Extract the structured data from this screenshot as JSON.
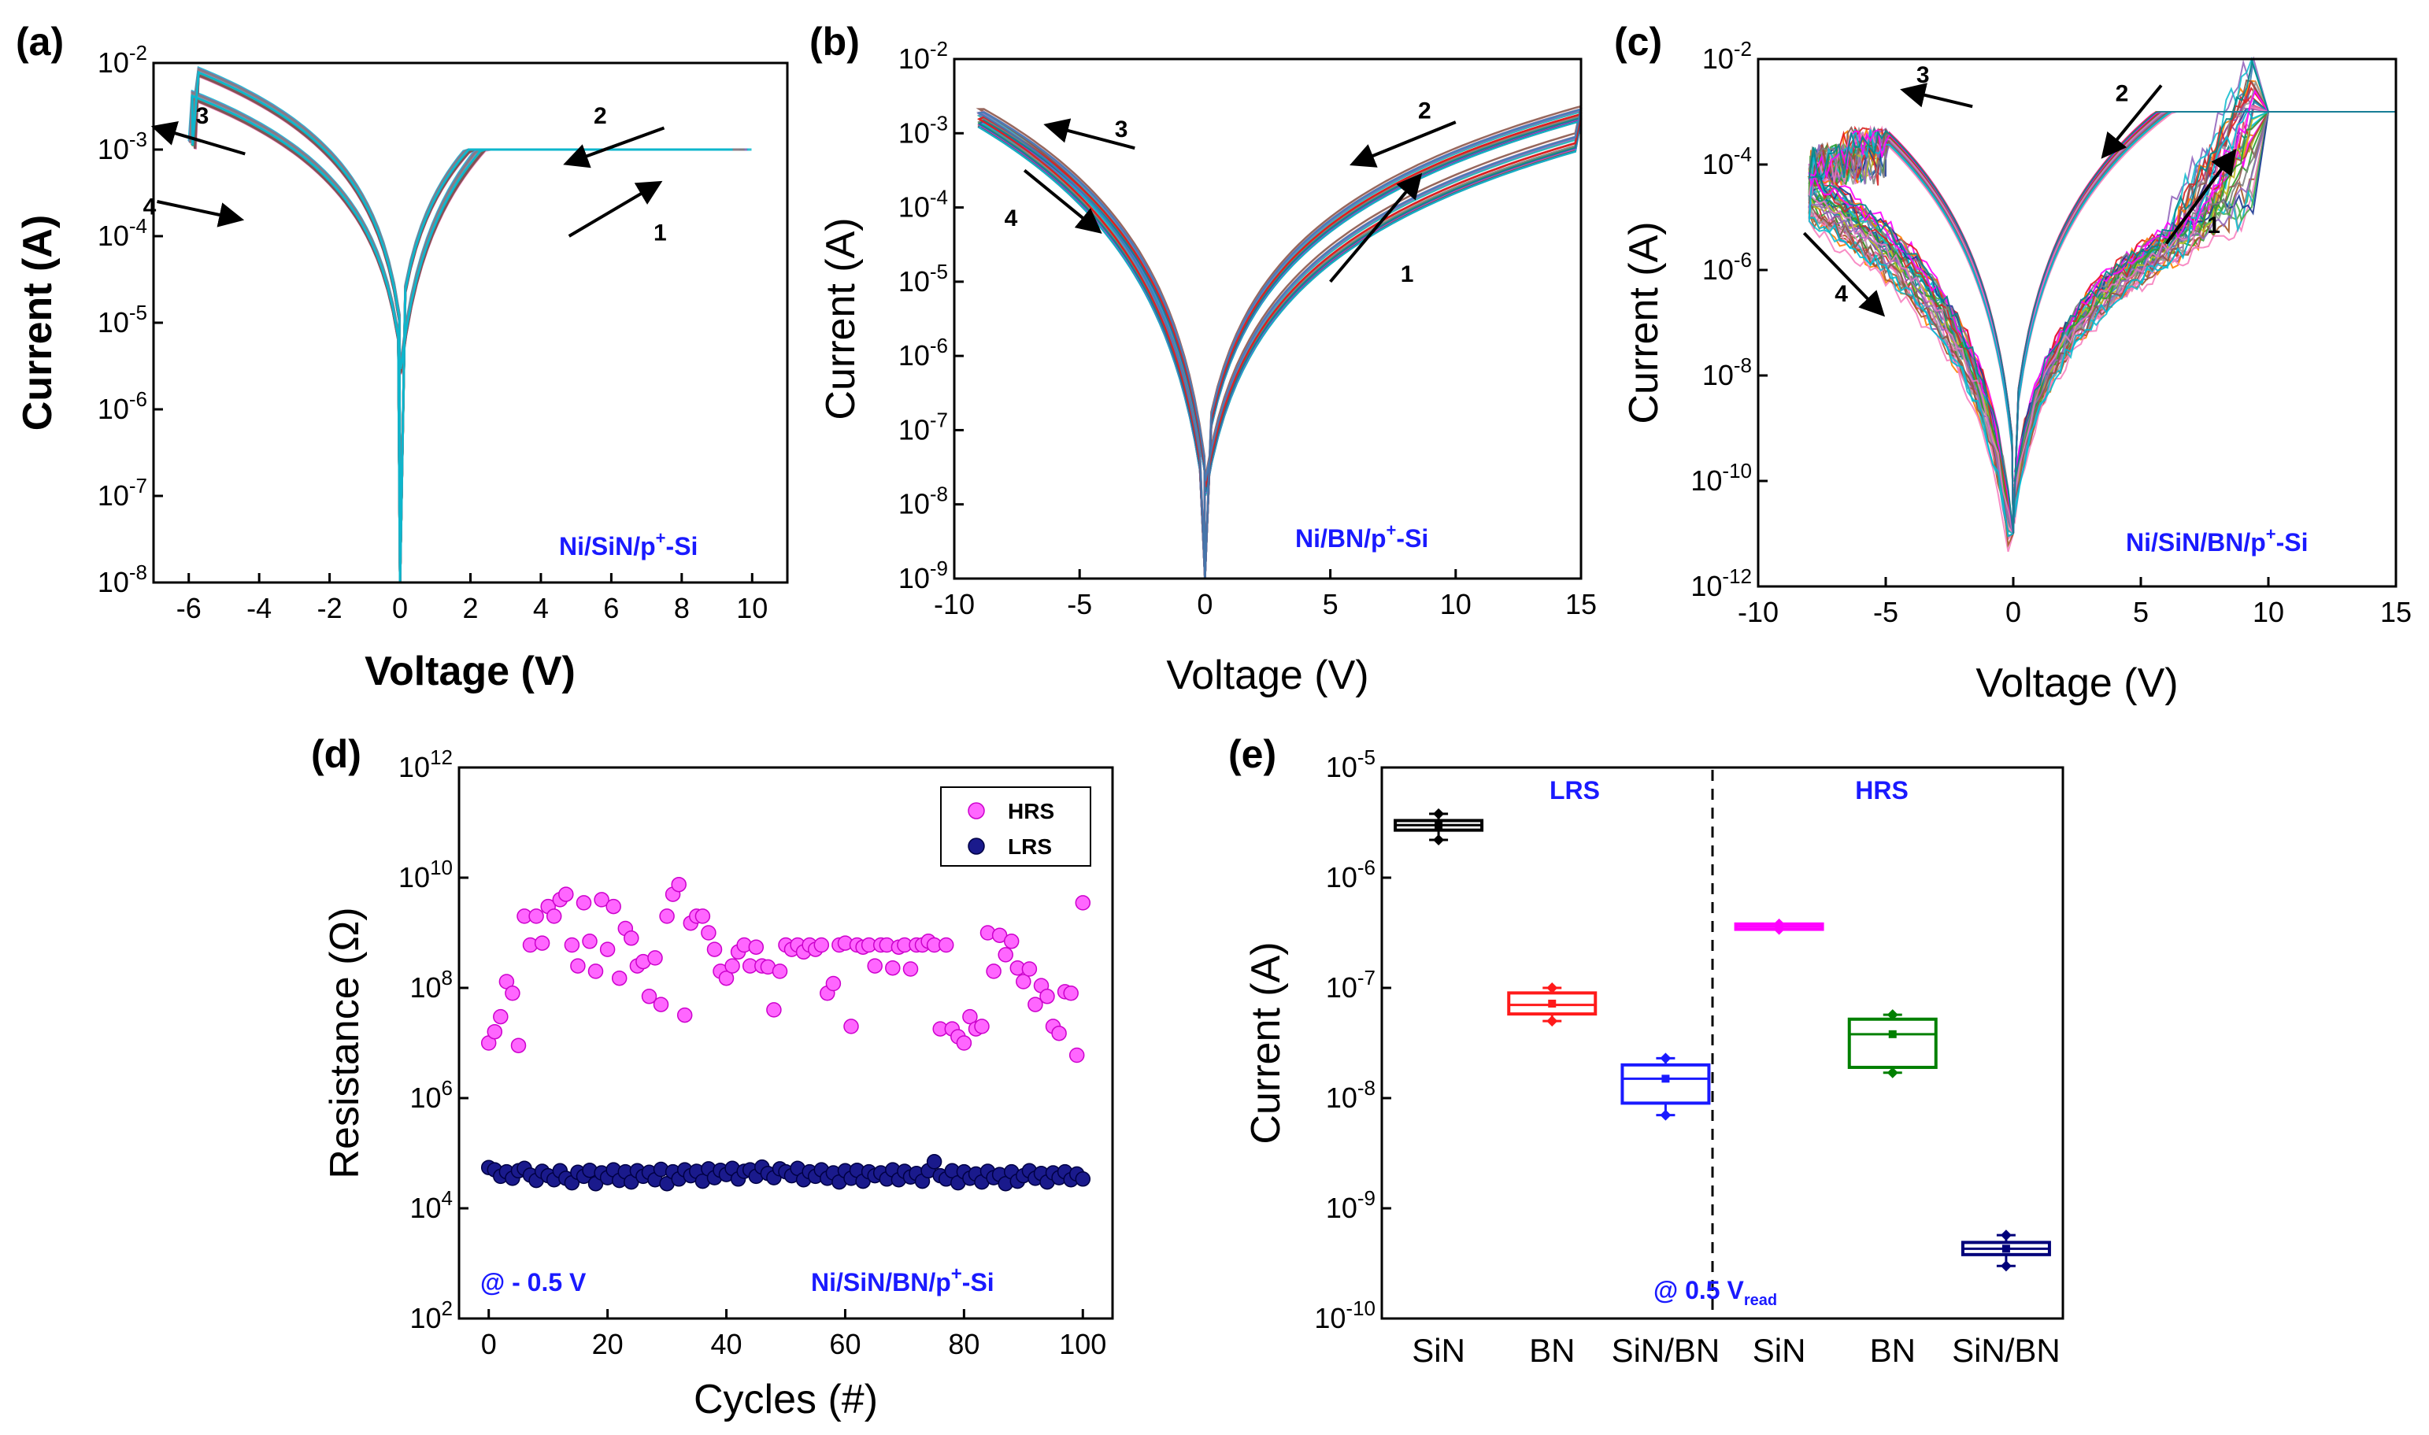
{
  "chart_data": [
    {
      "id": "a",
      "type": "line",
      "panel_label": "(a)",
      "xlabel": "Voltage (V)",
      "ylabel": "Current (A)",
      "xlim": [
        -7,
        11
      ],
      "ylim_log10": [
        -8,
        -2
      ],
      "xticks": [
        "-6",
        "-4",
        "-2",
        "0",
        "2",
        "4",
        "6",
        "8",
        "10"
      ],
      "yticks": [
        "10^-8",
        "10^-7",
        "10^-6",
        "10^-5",
        "10^-4",
        "10^-3",
        "10^-2"
      ],
      "annotation": "Ni/SiN/p+-Si",
      "compliance_A": 0.001,
      "arrows": [
        "1",
        "2",
        "3",
        "4"
      ],
      "sweep_range_V": [
        -6,
        10
      ]
    },
    {
      "id": "b",
      "type": "line",
      "panel_label": "(b)",
      "xlabel": "Voltage (V)",
      "ylabel": "Current (A)",
      "xlim": [
        -10,
        15
      ],
      "ylim_log10": [
        -9,
        -2
      ],
      "xticks": [
        "-10",
        "-5",
        "0",
        "5",
        "10",
        "15"
      ],
      "yticks": [
        "10^-9",
        "10^-8",
        "10^-7",
        "10^-6",
        "10^-5",
        "10^-4",
        "10^-3",
        "10^-2"
      ],
      "annotation": "Ni/BN/p+-Si",
      "arrows": [
        "1",
        "2",
        "3",
        "4"
      ],
      "sweep_range_V": [
        -9,
        15
      ]
    },
    {
      "id": "c",
      "type": "line",
      "panel_label": "(c)",
      "xlabel": "Voltage (V)",
      "ylabel": "Current (A)",
      "xlim": [
        -10,
        15
      ],
      "ylim_log10": [
        -12,
        -2
      ],
      "xticks": [
        "-10",
        "-5",
        "0",
        "5",
        "10",
        "15"
      ],
      "yticks": [
        "10^-12",
        "10^-10",
        "10^-8",
        "10^-6",
        "10^-4",
        "10^-2"
      ],
      "annotation": "Ni/SiN/BN/p+-Si",
      "compliance_A": 0.001,
      "arrows": [
        "1",
        "2",
        "3",
        "4"
      ],
      "sweep_range_V": [
        -8,
        15
      ]
    },
    {
      "id": "d",
      "type": "scatter",
      "panel_label": "(d)",
      "xlabel": "Cycles (#)",
      "ylabel": "Resistance (Ω)",
      "xlim": [
        -5,
        105
      ],
      "ylim_log10": [
        2,
        12
      ],
      "xticks": [
        "0",
        "20",
        "40",
        "60",
        "80",
        "100"
      ],
      "yticks": [
        "10^2",
        "10^4",
        "10^6",
        "10^8",
        "10^10",
        "10^12"
      ],
      "legend": [
        "HRS",
        "LRS"
      ],
      "legend_position": "top-right",
      "annotation_left": "@ - 0.5 V",
      "annotation_right": "Ni/SiN/BN/p+-Si",
      "series": [
        {
          "name": "HRS",
          "color": "#ff33ff",
          "values": [
            10000000.0,
            16000000.0,
            30000000.0,
            130000000.0,
            80000000.0,
            9000000.0,
            2000000000.0,
            600000000.0,
            2000000000.0,
            650000000.0,
            3000000000.0,
            2000000000.0,
            4000000000.0,
            5000000000.0,
            600000000.0,
            250000000.0,
            3500000000.0,
            700000000.0,
            200000000.0,
            4000000000.0,
            500000000.0,
            3000000000.0,
            150000000.0,
            1200000000.0,
            800000000.0,
            250000000.0,
            300000000.0,
            70000000.0,
            350000000.0,
            50000000.0,
            2000000000.0,
            5000000000.0,
            7500000000.0,
            32000000.0,
            1500000000.0,
            2000000000.0,
            2000000000.0,
            1000000000.0,
            500000000.0,
            200000000.0,
            150000000.0,
            250000000.0,
            450000000.0,
            600000000.0,
            250000000.0,
            550000000.0,
            250000000.0,
            240000000.0,
            40000000.0,
            200000000.0,
            600000000.0,
            500000000.0,
            600000000.0,
            450000000.0,
            600000000.0,
            500000000.0,
            600000000.0,
            80000000.0,
            120000000.0,
            600000000.0,
            650000000.0,
            20000000.0,
            600000000.0,
            550000000.0,
            600000000.0,
            250000000.0,
            600000000.0,
            600000000.0,
            230000000.0,
            550000000.0,
            600000000.0,
            220000000.0,
            600000000.0,
            600000000.0,
            700000000.0,
            600000000.0,
            18000000.0,
            600000000.0,
            18000000.0,
            13000000.0,
            10000000.0,
            30000000.0,
            18000000.0,
            20000000.0,
            1000000000.0,
            200000000.0,
            900000000.0,
            400000000.0,
            700000000.0,
            230000000.0,
            130000000.0,
            220000000.0,
            50000000.0,
            110000000.0,
            70000000.0,
            20000000.0,
            15000000.0,
            85000000.0,
            80000000.0,
            6000000.0,
            3500000000.0
          ]
        },
        {
          "name": "LRS",
          "color": "#1a1a8c",
          "values": [
            55000.0,
            50000.0,
            38000.0,
            46000.0,
            35000.0,
            48000.0,
            53000.0,
            40000.0,
            32000.0,
            47000.0,
            39000.0,
            33000.0,
            48000.0,
            35000.0,
            29000.0,
            45000.0,
            38000.0,
            49000.0,
            28000.0,
            44000.0,
            36000.0,
            50000.0,
            32000.0,
            46000.0,
            30000.0,
            48000.0,
            38000.0,
            45000.0,
            33000.0,
            51000.0,
            28000.0,
            46000.0,
            34000.0,
            50000.0,
            39000.0,
            47000.0,
            31000.0,
            52000.0,
            36000.0,
            49000.0,
            41000.0,
            53000.0,
            34000.0,
            47000.0,
            50000.0,
            38000.0,
            56000.0,
            43000.0,
            36000.0,
            52000.0,
            46000.0,
            39000.0,
            53000.0,
            33000.0,
            46000.0,
            38000.0,
            50000.0,
            35000.0,
            44000.0,
            30000.0,
            48000.0,
            35000.0,
            49000.0,
            31000.0,
            46000.0,
            39000.0,
            44000.0,
            34000.0,
            50000.0,
            33000.0,
            47000.0,
            37000.0,
            43000.0,
            31000.0,
            48000.0,
            70000.0,
            39000.0,
            34000.0,
            48000.0,
            29000.0,
            46000.0,
            35000.0,
            42000.0,
            30000.0,
            47000.0,
            36000.0,
            41000.0,
            28000.0,
            46000.0,
            31000.0,
            39000.0,
            48000.0,
            35000.0,
            43000.0,
            30000.0,
            44000.0,
            36000.0,
            46000.0,
            33000.0,
            42000.0,
            34000.0
          ]
        }
      ]
    },
    {
      "id": "e",
      "type": "box",
      "panel_label": "(e)",
      "ylabel": "Current (A)",
      "ylim_log10": [
        -10,
        -5
      ],
      "yticks": [
        "10^-10",
        "10^-9",
        "10^-8",
        "10^-7",
        "10^-6",
        "10^-5"
      ],
      "group_labels": [
        "LRS",
        "HRS"
      ],
      "categories": [
        "SiN",
        "BN",
        "SiN/BN",
        "SiN",
        "BN",
        "SiN/BN"
      ],
      "annotation": "@ 0.5 V",
      "annotation_sub": "read",
      "boxes": [
        {
          "group": "LRS",
          "label": "SiN",
          "color": "#000000",
          "min": 2.2e-06,
          "q1": 2.7e-06,
          "median": 3e-06,
          "mean": 3e-06,
          "q3": 3.3e-06,
          "max": 3.8e-06
        },
        {
          "group": "LRS",
          "label": "BN",
          "color": "#ff1a1a",
          "min": 5e-08,
          "q1": 5.8e-08,
          "median": 7e-08,
          "mean": 7.2e-08,
          "q3": 9e-08,
          "max": 1e-07
        },
        {
          "group": "LRS",
          "label": "SiN/BN",
          "color": "#1a1aff",
          "min": 7e-09,
          "q1": 9e-09,
          "median": 1.5e-08,
          "mean": 1.5e-08,
          "q3": 2e-08,
          "max": 2.3e-08
        },
        {
          "group": "HRS",
          "label": "SiN",
          "color": "#ff00ff",
          "min": 3.4e-07,
          "q1": 3.4e-07,
          "median": 3.6e-07,
          "mean": 3.6e-07,
          "q3": 3.8e-07,
          "max": 3.8e-07
        },
        {
          "group": "HRS",
          "label": "BN",
          "color": "#008000",
          "min": 1.7e-08,
          "q1": 1.9e-08,
          "median": 3.8e-08,
          "mean": 3.8e-08,
          "q3": 5.2e-08,
          "max": 5.7e-08
        },
        {
          "group": "HRS",
          "label": "SiN/BN",
          "color": "#00007a",
          "min": 3e-10,
          "q1": 3.8e-10,
          "median": 4.3e-10,
          "mean": 4.3e-10,
          "q3": 4.9e-10,
          "max": 5.7e-10
        }
      ]
    }
  ]
}
